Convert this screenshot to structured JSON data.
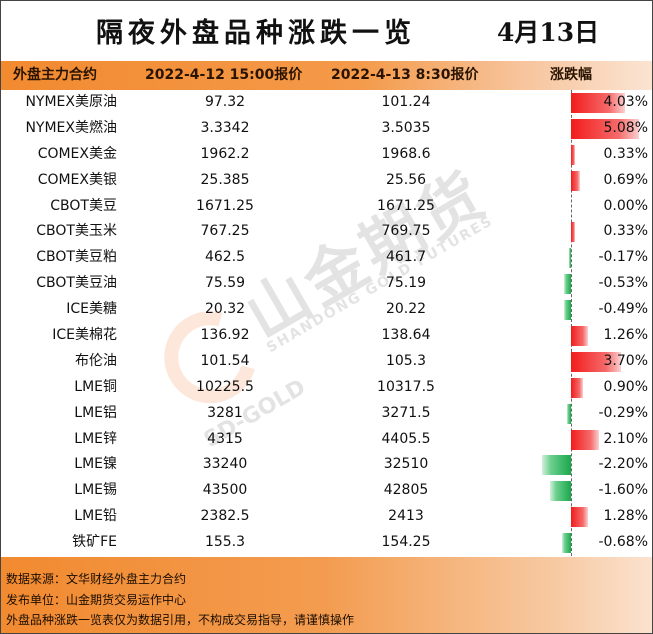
{
  "title": "隔夜外盘品种涨跌一览",
  "date": "4月13日",
  "headers": [
    "外盘主力合约",
    "2022-4-12 15:00报价",
    "2022-4-13 8:30报价",
    "涨跌幅"
  ],
  "rows": [
    {
      "name": "NYMEX美原油",
      "prev": "97.32",
      "curr": "101.24",
      "change": "4.03%",
      "pct": 4.03
    },
    {
      "name": "NYMEX美燃油",
      "prev": "3.3342",
      "curr": "3.5035",
      "change": "5.08%",
      "pct": 5.08
    },
    {
      "name": "COMEX美金",
      "prev": "1962.2",
      "curr": "1968.6",
      "change": "0.33%",
      "pct": 0.33
    },
    {
      "name": "COMEX美银",
      "prev": "25.385",
      "curr": "25.56",
      "change": "0.69%",
      "pct": 0.69
    },
    {
      "name": "CBOT美豆",
      "prev": "1671.25",
      "curr": "1671.25",
      "change": "0.00%",
      "pct": 0.0
    },
    {
      "name": "CBOT美玉米",
      "prev": "767.25",
      "curr": "769.75",
      "change": "0.33%",
      "pct": 0.33
    },
    {
      "name": "CBOT美豆粕",
      "prev": "462.5",
      "curr": "461.7",
      "change": "-0.17%",
      "pct": -0.17
    },
    {
      "name": "CBOT美豆油",
      "prev": "75.59",
      "curr": "75.19",
      "change": "-0.53%",
      "pct": -0.53
    },
    {
      "name": "ICE美糖",
      "prev": "20.32",
      "curr": "20.22",
      "change": "-0.49%",
      "pct": -0.49
    },
    {
      "name": "ICE美棉花",
      "prev": "136.92",
      "curr": "138.64",
      "change": "1.26%",
      "pct": 1.26
    },
    {
      "name": "布伦油",
      "prev": "101.54",
      "curr": "105.3",
      "change": "3.70%",
      "pct": 3.7
    },
    {
      "name": "LME铜",
      "prev": "10225.5",
      "curr": "10317.5",
      "change": "0.90%",
      "pct": 0.9
    },
    {
      "name": "LME铝",
      "prev": "3281",
      "curr": "3271.5",
      "change": "-0.29%",
      "pct": -0.29
    },
    {
      "name": "LME锌",
      "prev": "4315",
      "curr": "4405.5",
      "change": "2.10%",
      "pct": 2.1
    },
    {
      "name": "LME镍",
      "prev": "33240",
      "curr": "32510",
      "change": "-2.20%",
      "pct": -2.2
    },
    {
      "name": "LME锡",
      "prev": "43500",
      "curr": "42805",
      "change": "-1.60%",
      "pct": -1.6
    },
    {
      "name": "LME铅",
      "prev": "2382.5",
      "curr": "2413",
      "change": "1.28%",
      "pct": 1.28
    },
    {
      "name": "铁矿FE",
      "prev": "155.3",
      "curr": "154.25",
      "change": "-0.68%",
      "pct": -0.68
    }
  ],
  "watermark": {
    "cn": "山金期货",
    "en": "SHANDONG GOLD FUTURES",
    "sd": "SD-GOLD"
  },
  "footer": [
    "数据来源：文华财经外盘主力合约",
    "发布单位：山金期货交易运作中心",
    "外盘品种涨跌一览表仅为数据引用，不构成交易指导，请谨慎操作"
  ],
  "colors": {
    "header": "#f28a30",
    "up": "#f21c1c",
    "down": "#1aa84a"
  }
}
